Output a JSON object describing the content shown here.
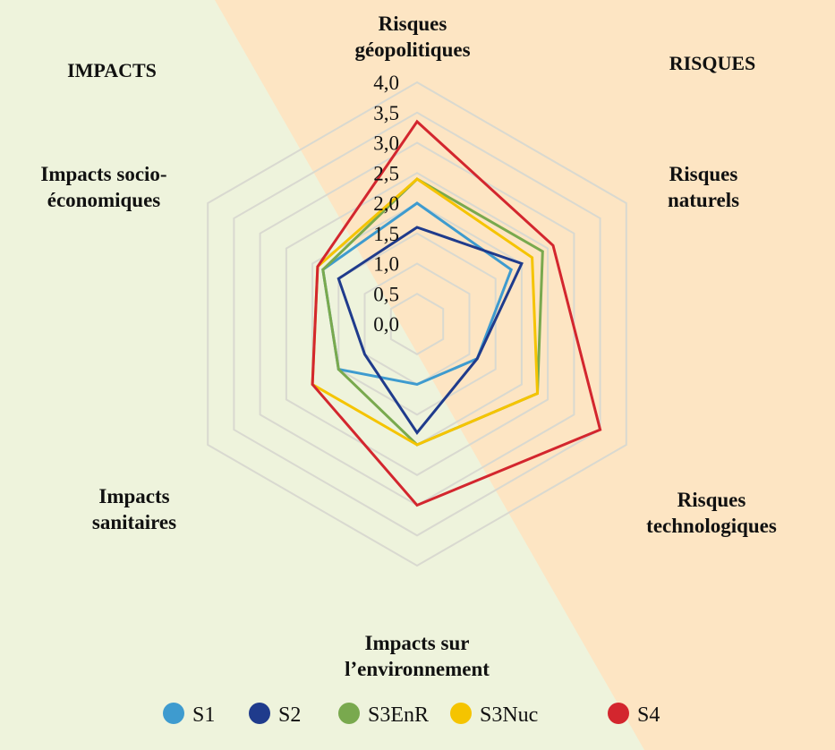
{
  "chart_data": {
    "type": "radar",
    "axes": [
      "Risques géopolitiques",
      "Risques naturels",
      "Risques technologiques",
      "Impacts sur l’environnement",
      "Impacts sanitaires",
      "Impacts socio-économiques"
    ],
    "axis_label_lines": [
      [
        "Risques",
        "géopolitiques"
      ],
      [
        "Risques",
        "naturels"
      ],
      [
        "Risques",
        "technologiques"
      ],
      [
        "Impacts sur",
        "l’environnement"
      ],
      [
        "Impacts",
        "sanitaires"
      ],
      [
        "Impacts socio-",
        "économiques"
      ]
    ],
    "rlim": [
      0,
      4.0
    ],
    "ticks": [
      "0,0",
      "0,5",
      "1,0",
      "1,5",
      "2,0",
      "2,5",
      "3,0",
      "3,5",
      "4,0"
    ],
    "tick_values": [
      0,
      0.5,
      1.0,
      1.5,
      2.0,
      2.5,
      3.0,
      3.5,
      4.0
    ],
    "grid": true,
    "legend_position": "bottom",
    "background_left_label": "IMPACTS",
    "background_right_label": "RISQUES",
    "background_colors": {
      "impacts": "#eef3dc",
      "risques": "#fde5c3"
    },
    "series": [
      {
        "name": "S1",
        "color": "#3e9bcf",
        "values": [
          2.0,
          1.8,
          1.15,
          1.0,
          1.5,
          1.8
        ]
      },
      {
        "name": "S2",
        "color": "#1f3b8c",
        "values": [
          1.6,
          2.0,
          1.15,
          1.8,
          1.0,
          1.5
        ]
      },
      {
        "name": "S3EnR",
        "color": "#79a94e",
        "values": [
          2.4,
          2.4,
          2.3,
          2.0,
          1.5,
          1.8
        ]
      },
      {
        "name": "S3Nuc",
        "color": "#f5c400",
        "values": [
          2.4,
          2.2,
          2.3,
          2.0,
          2.0,
          1.9
        ]
      },
      {
        "name": "S4",
        "color": "#d3262e",
        "values": [
          3.35,
          2.6,
          3.5,
          3.0,
          2.0,
          1.9
        ]
      }
    ]
  }
}
